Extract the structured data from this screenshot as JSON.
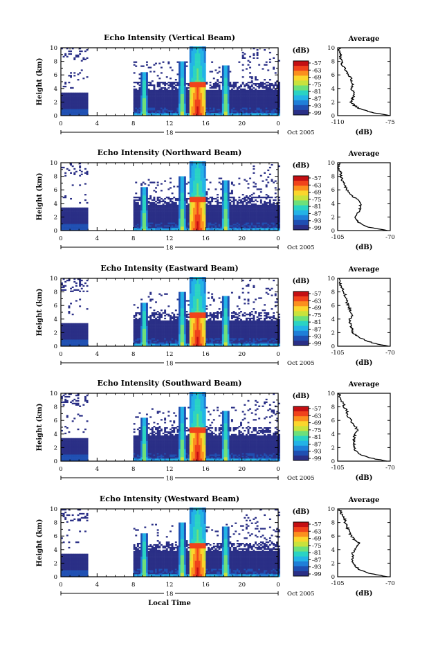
{
  "chart_data": [
    {
      "type": "heatmap",
      "title": "Echo Intensity (Vertical Beam)",
      "ylabel": "Height (km)",
      "xlabel": "",
      "xticks": [
        "0",
        "4",
        "8",
        "12",
        "16",
        "20",
        "0"
      ],
      "yticks": [
        "0",
        "2",
        "4",
        "6",
        "8",
        "10"
      ],
      "xlim": [
        0,
        24
      ],
      "ylim": [
        0,
        10
      ],
      "date_label": "18",
      "month_label": "Oct 2005",
      "colorbar": {
        "label": "(dB)",
        "ticks": [
          "-57",
          "-63",
          "-69",
          "-75",
          "-81",
          "-87",
          "-93",
          "-99"
        ]
      },
      "average": {
        "title": "Average",
        "xlabel": "(dB)",
        "xticks": [
          "-110",
          "-75"
        ],
        "xlim": [
          -110,
          -75
        ],
        "yticks": [
          "0",
          "2",
          "4",
          "6",
          "8",
          "10"
        ],
        "profile": [
          [
            -75,
            0
          ],
          [
            -88,
            0.5
          ],
          [
            -95,
            1
          ],
          [
            -99,
            1.5
          ],
          [
            -101,
            2
          ],
          [
            -100,
            2.5
          ],
          [
            -99,
            3
          ],
          [
            -99,
            3.5
          ],
          [
            -101,
            4
          ],
          [
            -100,
            4.5
          ],
          [
            -101,
            5
          ],
          [
            -101,
            5.5
          ],
          [
            -103,
            6
          ],
          [
            -104,
            6.5
          ],
          [
            -105,
            7
          ],
          [
            -107,
            7.5
          ],
          [
            -107,
            8
          ],
          [
            -108,
            8.5
          ],
          [
            -108,
            9
          ],
          [
            -109,
            9.5
          ],
          [
            -109,
            10
          ]
        ]
      },
      "features": {
        "echo_cells_hour": [
          0,
          3.0,
          8.0,
          24.0
        ],
        "convective_bursts_hour": [
          9.1,
          13.4,
          15.0,
          18.2
        ]
      }
    },
    {
      "type": "heatmap",
      "title": "Echo Intensity (Northward Beam)",
      "ylabel": "Height (km)",
      "xlabel": "",
      "xticks": [
        "0",
        "4",
        "8",
        "12",
        "16",
        "20",
        "0"
      ],
      "yticks": [
        "0",
        "2",
        "4",
        "6",
        "8",
        "10"
      ],
      "xlim": [
        0,
        24
      ],
      "ylim": [
        0,
        10
      ],
      "date_label": "18",
      "month_label": "Oct 2005",
      "colorbar": {
        "label": "(dB)",
        "ticks": [
          "-57",
          "-63",
          "-69",
          "-75",
          "-81",
          "-87",
          "-93",
          "-99"
        ]
      },
      "average": {
        "title": "Average",
        "xlabel": "(dB)",
        "xticks": [
          "-105",
          "-70"
        ],
        "xlim": [
          -105,
          -70
        ],
        "yticks": [
          "0",
          "2",
          "4",
          "6",
          "8",
          "10"
        ],
        "profile": [
          [
            -72,
            0
          ],
          [
            -84,
            0.5
          ],
          [
            -90,
            1
          ],
          [
            -92,
            1.5
          ],
          [
            -94,
            2
          ],
          [
            -92,
            2.5
          ],
          [
            -90,
            3
          ],
          [
            -90,
            3.5
          ],
          [
            -90,
            4
          ],
          [
            -91,
            4.5
          ],
          [
            -95,
            5
          ],
          [
            -97,
            5.5
          ],
          [
            -99,
            6
          ],
          [
            -100,
            6.5
          ],
          [
            -101,
            7
          ],
          [
            -102,
            7.5
          ],
          [
            -103,
            8
          ],
          [
            -103,
            8.5
          ],
          [
            -104,
            9
          ],
          [
            -104,
            9.5
          ],
          [
            -104,
            10
          ]
        ]
      },
      "features": {
        "echo_cells_hour": [
          0,
          3.0,
          8.0,
          24.0
        ],
        "convective_bursts_hour": [
          9.3,
          13.4,
          15.0,
          18.2
        ]
      }
    },
    {
      "type": "heatmap",
      "title": "Echo Intensity (Eastward Beam)",
      "ylabel": "Height (km)",
      "xlabel": "",
      "xticks": [
        "0",
        "4",
        "8",
        "12",
        "16",
        "20",
        "0"
      ],
      "yticks": [
        "0",
        "2",
        "4",
        "6",
        "8",
        "10"
      ],
      "xlim": [
        0,
        24
      ],
      "ylim": [
        0,
        10
      ],
      "date_label": "18",
      "month_label": "Oct 2005",
      "colorbar": {
        "label": "(dB)",
        "ticks": [
          "-57",
          "-63",
          "-69",
          "-75",
          "-81",
          "-87",
          "-93",
          "-99"
        ]
      },
      "average": {
        "title": "Average",
        "xlabel": "(dB)",
        "xticks": [
          "-105",
          "-70"
        ],
        "xlim": [
          -105,
          -70
        ],
        "yticks": [
          "0",
          "2",
          "4",
          "6",
          "8",
          "10"
        ],
        "profile": [
          [
            -72,
            0
          ],
          [
            -82,
            0.5
          ],
          [
            -88,
            1
          ],
          [
            -92,
            1.5
          ],
          [
            -95,
            2
          ],
          [
            -95,
            2.5
          ],
          [
            -96,
            3
          ],
          [
            -97,
            3.5
          ],
          [
            -97,
            4
          ],
          [
            -95,
            4.5
          ],
          [
            -96,
            5
          ],
          [
            -97,
            5.5
          ],
          [
            -98,
            6
          ],
          [
            -99,
            6.5
          ],
          [
            -99,
            7
          ],
          [
            -100,
            7.5
          ],
          [
            -101,
            8
          ],
          [
            -102,
            8.5
          ],
          [
            -103,
            9
          ],
          [
            -104,
            9.5
          ],
          [
            -104,
            10
          ]
        ]
      },
      "features": {
        "echo_cells_hour": [
          0,
          3.0,
          8.0,
          24.0
        ],
        "convective_bursts_hour": [
          9.0,
          13.4,
          15.0,
          18.2
        ]
      }
    },
    {
      "type": "heatmap",
      "title": "Echo Intensity (Southward Beam)",
      "ylabel": "Height (km)",
      "xlabel": "",
      "xticks": [
        "0",
        "4",
        "8",
        "12",
        "16",
        "20",
        "0"
      ],
      "yticks": [
        "0",
        "2",
        "4",
        "6",
        "8",
        "10"
      ],
      "xlim": [
        0,
        24
      ],
      "ylim": [
        0,
        10
      ],
      "date_label": "18",
      "month_label": "Oct 2005",
      "colorbar": {
        "label": "(dB)",
        "ticks": [
          "-57",
          "-63",
          "-69",
          "-75",
          "-81",
          "-87",
          "-93",
          "-99"
        ]
      },
      "average": {
        "title": "Average",
        "xlabel": "(dB)",
        "xticks": [
          "-105",
          "-70"
        ],
        "xlim": [
          -105,
          -70
        ],
        "yticks": [
          "0",
          "2",
          "4",
          "6",
          "8",
          "10"
        ],
        "profile": [
          [
            -72,
            0
          ],
          [
            -84,
            0.5
          ],
          [
            -90,
            1
          ],
          [
            -93,
            1.5
          ],
          [
            -94,
            2
          ],
          [
            -94,
            2.5
          ],
          [
            -94,
            3
          ],
          [
            -94,
            3.5
          ],
          [
            -93,
            4
          ],
          [
            -92,
            4.5
          ],
          [
            -93,
            5
          ],
          [
            -95,
            5.5
          ],
          [
            -96,
            6
          ],
          [
            -98,
            6.5
          ],
          [
            -99,
            7
          ],
          [
            -99,
            7.5
          ],
          [
            -101,
            8
          ],
          [
            -101,
            8.5
          ],
          [
            -103,
            9
          ],
          [
            -104,
            9.5
          ],
          [
            -104,
            10
          ]
        ]
      },
      "features": {
        "echo_cells_hour": [
          0,
          3.0,
          8.0,
          24.0
        ],
        "convective_bursts_hour": [
          9.2,
          13.4,
          15.0,
          18.2
        ]
      }
    },
    {
      "type": "heatmap",
      "title": "Echo Intensity (Westward Beam)",
      "ylabel": "Height (km)",
      "xlabel": "Local Time",
      "xticks": [
        "0",
        "4",
        "8",
        "12",
        "16",
        "20",
        "0"
      ],
      "yticks": [
        "0",
        "2",
        "4",
        "6",
        "8",
        "10"
      ],
      "xlim": [
        0,
        24
      ],
      "ylim": [
        0,
        10
      ],
      "date_label": "18",
      "month_label": "Oct 2005",
      "colorbar": {
        "label": "(dB)",
        "ticks": [
          "-57",
          "-63",
          "-69",
          "-75",
          "-81",
          "-87",
          "-93",
          "-99"
        ]
      },
      "average": {
        "title": "Average",
        "xlabel": "(dB)",
        "xticks": [
          "-105",
          "-70"
        ],
        "xlim": [
          -105,
          -70
        ],
        "yticks": [
          "0",
          "2",
          "4",
          "6",
          "8",
          "10"
        ],
        "profile": [
          [
            -72,
            0
          ],
          [
            -84,
            0.5
          ],
          [
            -90,
            1
          ],
          [
            -93,
            1.5
          ],
          [
            -95,
            2
          ],
          [
            -95,
            2.5
          ],
          [
            -95,
            3
          ],
          [
            -95,
            3.5
          ],
          [
            -93,
            4
          ],
          [
            -92,
            4.5
          ],
          [
            -91,
            5
          ],
          [
            -94,
            5.5
          ],
          [
            -96,
            6
          ],
          [
            -97,
            6.5
          ],
          [
            -98,
            7
          ],
          [
            -99,
            7.5
          ],
          [
            -100,
            8
          ],
          [
            -100,
            8.5
          ],
          [
            -102,
            9
          ],
          [
            -103,
            9.5
          ],
          [
            -104,
            10
          ]
        ]
      },
      "features": {
        "echo_cells_hour": [
          0,
          3.0,
          8.0,
          24.0
        ],
        "convective_bursts_hour": [
          9.2,
          13.4,
          15.0,
          18.2
        ]
      }
    }
  ],
  "colors": {
    "palette": [
      "#2a2f86",
      "#1f4fb2",
      "#1f7fd8",
      "#23b3e6",
      "#2ad3c3",
      "#6de07a",
      "#c9e23c",
      "#fbd62c",
      "#fb8f1e",
      "#f0421b",
      "#c40f12"
    ]
  }
}
